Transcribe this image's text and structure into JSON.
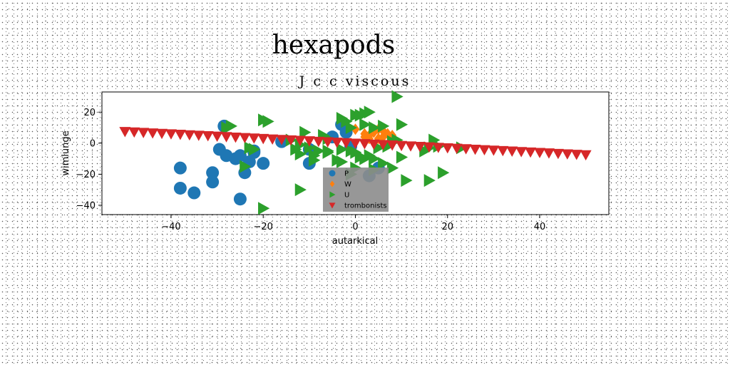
{
  "chart_data": {
    "type": "scatter",
    "suptitle": "hexapods",
    "title": "J c c viscous",
    "xlabel": "autarkical",
    "ylabel": "wimlunge",
    "xlim": [
      -55,
      55
    ],
    "ylim": [
      -46,
      33
    ],
    "xticks": [
      -40,
      -20,
      0,
      20,
      40
    ],
    "yticks": [
      -40,
      -20,
      0,
      20
    ],
    "grid": false,
    "legend_position": "lower-center",
    "series": [
      {
        "name": "P",
        "marker": "circle",
        "color": "#1f77b4",
        "points": [
          [
            -28.5,
            11
          ],
          [
            -29.5,
            -4
          ],
          [
            -28,
            -8
          ],
          [
            -26,
            -10
          ],
          [
            -25,
            -8
          ],
          [
            -23,
            -12
          ],
          [
            -22,
            -5
          ],
          [
            -22,
            -6
          ],
          [
            -24,
            -19
          ],
          [
            -20,
            -13
          ],
          [
            -31,
            -19
          ],
          [
            -31,
            -25
          ],
          [
            -35,
            -32
          ],
          [
            -38,
            -16
          ],
          [
            -38,
            -29
          ],
          [
            -25,
            -36
          ],
          [
            -16,
            1
          ],
          [
            -10,
            -4
          ],
          [
            -10,
            -13
          ],
          [
            -3,
            12
          ],
          [
            -5,
            4
          ],
          [
            -2,
            7
          ],
          [
            -1,
            -2
          ],
          [
            3,
            -21
          ],
          [
            5,
            -16
          ]
        ]
      },
      {
        "name": "W",
        "marker": "diamond",
        "color": "#ff7f0e",
        "points": [
          [
            0,
            9
          ],
          [
            2,
            4
          ],
          [
            3,
            5
          ],
          [
            4,
            7
          ],
          [
            5,
            9
          ],
          [
            6,
            8
          ],
          [
            6,
            4
          ],
          [
            7,
            6
          ],
          [
            8,
            5
          ],
          [
            3,
            3
          ],
          [
            5,
            3
          ],
          [
            2,
            6
          ]
        ]
      },
      {
        "name": "U",
        "marker": "triangle-right",
        "color": "#2ca02c",
        "points": [
          [
            9,
            30
          ],
          [
            0,
            18
          ],
          [
            1,
            18
          ],
          [
            3,
            20
          ],
          [
            2,
            19
          ],
          [
            -3,
            16
          ],
          [
            -2,
            14
          ],
          [
            -20,
            15
          ],
          [
            -19,
            14
          ],
          [
            -27,
            11
          ],
          [
            10,
            12
          ],
          [
            4,
            10
          ],
          [
            6,
            11
          ],
          [
            2,
            12
          ],
          [
            -1,
            10
          ],
          [
            -11,
            7
          ],
          [
            -7,
            5
          ],
          [
            -6,
            3
          ],
          [
            -14,
            2
          ],
          [
            -12,
            -1
          ],
          [
            -10,
            -3
          ],
          [
            -13,
            -4
          ],
          [
            -12,
            -7
          ],
          [
            -9,
            -8
          ],
          [
            -8,
            -5
          ],
          [
            -6,
            -6
          ],
          [
            -3,
            -4
          ],
          [
            -1,
            -5
          ],
          [
            0,
            -6
          ],
          [
            -4,
            -11
          ],
          [
            -3,
            -12
          ],
          [
            1,
            -9
          ],
          [
            2,
            -10
          ],
          [
            3,
            -8
          ],
          [
            4,
            -10
          ],
          [
            5,
            -3
          ],
          [
            7,
            -2
          ],
          [
            8,
            1
          ],
          [
            9,
            2
          ],
          [
            10,
            -9
          ],
          [
            15,
            -5
          ],
          [
            16,
            -3
          ],
          [
            17,
            2
          ],
          [
            18,
            -2
          ],
          [
            23,
            -3
          ],
          [
            6,
            -13
          ],
          [
            8,
            -16
          ],
          [
            4,
            -17
          ],
          [
            -1,
            -20
          ],
          [
            0,
            -16
          ],
          [
            -23,
            -3
          ],
          [
            -22,
            -4
          ],
          [
            -24,
            -15
          ],
          [
            -12,
            -30
          ],
          [
            -20,
            -42
          ],
          [
            11,
            -24
          ],
          [
            16,
            -24
          ],
          [
            19,
            -19
          ],
          [
            -28,
            10
          ],
          [
            -9,
            -11
          ],
          [
            -6,
            -5
          ]
        ]
      },
      {
        "name": "trombonists",
        "marker": "triangle-down",
        "color": "#d62728",
        "points": [
          [
            -50,
            7.5
          ],
          [
            -48,
            7.2
          ],
          [
            -46,
            6.9
          ],
          [
            -44,
            6.6
          ],
          [
            -42,
            6.3
          ],
          [
            -40,
            6
          ],
          [
            -38,
            5.7
          ],
          [
            -36,
            5.4
          ],
          [
            -34,
            5.1
          ],
          [
            -32,
            4.8
          ],
          [
            -30,
            4.5
          ],
          [
            -28,
            4.2
          ],
          [
            -26,
            3.9
          ],
          [
            -24,
            3.6
          ],
          [
            -22,
            3.3
          ],
          [
            -20,
            3
          ],
          [
            -18,
            2.7
          ],
          [
            -16,
            2.4
          ],
          [
            -14,
            2.1
          ],
          [
            -12,
            1.8
          ],
          [
            -10,
            1.5
          ],
          [
            -8,
            1.2
          ],
          [
            -6,
            0.9
          ],
          [
            -4,
            0.6
          ],
          [
            -2,
            0.3
          ],
          [
            0,
            0
          ],
          [
            2,
            -0.3
          ],
          [
            4,
            -0.6
          ],
          [
            6,
            -0.9
          ],
          [
            8,
            -1.2
          ],
          [
            10,
            -1.5
          ],
          [
            12,
            -1.8
          ],
          [
            14,
            -2.1
          ],
          [
            16,
            -2.4
          ],
          [
            18,
            -2.7
          ],
          [
            20,
            -3
          ],
          [
            22,
            -3.3
          ],
          [
            24,
            -3.6
          ],
          [
            26,
            -3.9
          ],
          [
            28,
            -4.2
          ],
          [
            30,
            -4.5
          ],
          [
            32,
            -4.8
          ],
          [
            34,
            -5.1
          ],
          [
            36,
            -5.4
          ],
          [
            38,
            -5.7
          ],
          [
            40,
            -6
          ],
          [
            42,
            -6.3
          ],
          [
            44,
            -6.6
          ],
          [
            46,
            -6.9
          ],
          [
            48,
            -7.2
          ],
          [
            50,
            -7.5
          ]
        ]
      }
    ]
  }
}
